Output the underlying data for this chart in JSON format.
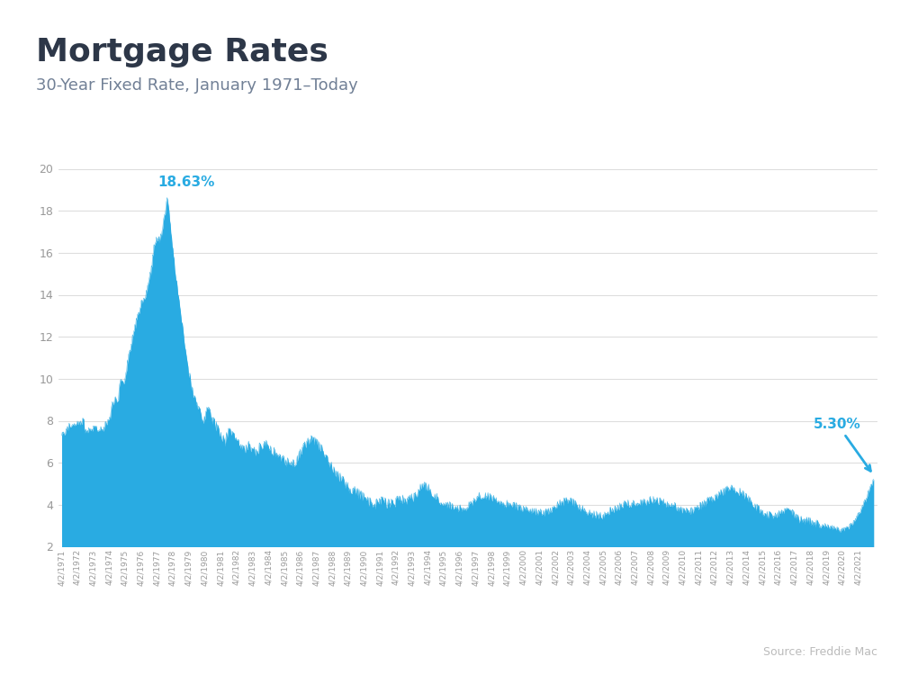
{
  "title": "Mortgage Rates",
  "subtitle": "30-Year Fixed Rate, January 1971–Today",
  "source": "Source: Freddie Mac",
  "fill_color": "#29ABE2",
  "background_color": "#FFFFFF",
  "top_bar_color": "#29ABE2",
  "title_color": "#2D3748",
  "subtitle_color": "#718096",
  "grid_color": "#DDDDDD",
  "annotation_color": "#29ABE2",
  "tick_color": "#999999",
  "ylim": [
    2,
    20
  ],
  "yticks": [
    2,
    4,
    6,
    8,
    10,
    12,
    14,
    16,
    18,
    20
  ],
  "max_label": "18.63%",
  "recent_label": "5.30%",
  "years": [
    1971,
    1972,
    1973,
    1974,
    1975,
    1976,
    1977,
    1978,
    1979,
    1980,
    1981,
    1982,
    1983,
    1984,
    1985,
    1986,
    1987,
    1988,
    1989,
    1990,
    1991,
    1992,
    1993,
    1994,
    1995,
    1996,
    1997,
    1998,
    1999,
    2000,
    2001,
    2002,
    2003,
    2004,
    2005,
    2006,
    2007,
    2008,
    2009,
    2010,
    2011,
    2012,
    2013,
    2014,
    2015,
    2016,
    2017,
    2018,
    2019,
    2020,
    2021
  ],
  "mortgage_rates": [
    7.33,
    7.33,
    7.33,
    7.44,
    7.44,
    7.44,
    7.52,
    7.52,
    7.52,
    7.67,
    7.67,
    7.67,
    7.79,
    7.79,
    7.79,
    7.82,
    7.82,
    7.82,
    7.84,
    7.84,
    7.84,
    7.87,
    7.87,
    7.87,
    7.9,
    7.9,
    7.9,
    7.93,
    7.93,
    7.93,
    7.96,
    7.96,
    7.96,
    7.98,
    7.98,
    7.98,
    7.68,
    7.54,
    7.54,
    7.54,
    7.54,
    7.56,
    7.56,
    7.56,
    7.58,
    7.58,
    7.58,
    7.59,
    7.59,
    7.59,
    7.62,
    7.62,
    7.62,
    7.64,
    7.64,
    7.63,
    7.63,
    7.62,
    7.62,
    7.6,
    7.6,
    7.61,
    7.63,
    7.63,
    7.6,
    7.6,
    7.6,
    7.63,
    7.7,
    7.8,
    7.88,
    7.92,
    7.96,
    7.96,
    7.96,
    8.0,
    8.1,
    8.2,
    8.5,
    8.8,
    8.8,
    8.8,
    8.8,
    9.0,
    9.1,
    9.2,
    9.0,
    8.85,
    8.8,
    8.95,
    9.1,
    9.5,
    9.7,
    9.9,
    9.9,
    9.9,
    9.9,
    9.9,
    9.9,
    9.9,
    10.08,
    10.08,
    10.38,
    10.38,
    10.78,
    10.78,
    11.2,
    11.2,
    11.45,
    11.45,
    11.72,
    11.72,
    11.95,
    11.95,
    12.2,
    12.2,
    12.5,
    12.5,
    12.78,
    12.78,
    12.98,
    12.98,
    13.22,
    13.22,
    13.44,
    13.44,
    13.64,
    13.64,
    13.74,
    13.74,
    13.87,
    13.87,
    13.94,
    13.94,
    14.1,
    14.1,
    14.45,
    14.45,
    14.7,
    14.7,
    14.95,
    14.95,
    15.38,
    15.38,
    15.98,
    15.98,
    16.35,
    16.35,
    16.57,
    16.57,
    16.63,
    16.63,
    16.7,
    16.7,
    16.63,
    16.57,
    16.7,
    16.83,
    16.83,
    16.97,
    17.2,
    17.48,
    17.66,
    17.82,
    17.95,
    18.15,
    18.45,
    18.63,
    18.45,
    18.22,
    17.95,
    17.7,
    17.35,
    17.0,
    16.7,
    16.42,
    16.15,
    15.87,
    15.58,
    15.3,
    15.02,
    14.8,
    14.55,
    14.3,
    14.1,
    13.88,
    13.64,
    13.42,
    13.22,
    13.0,
    12.78,
    12.54,
    12.28,
    12.05,
    11.8,
    11.55,
    11.32,
    11.05,
    10.85,
    10.68,
    10.52,
    10.38,
    10.22,
    10.08,
    9.94,
    9.8,
    9.66,
    9.54,
    9.4,
    9.28,
    9.18,
    9.08,
    8.97,
    8.88,
    8.8,
    8.72,
    8.65,
    8.58,
    8.52,
    8.42,
    8.32,
    8.25,
    8.18,
    8.12,
    8.05,
    8.0,
    7.98,
    8.1,
    8.25,
    8.4,
    8.5,
    8.55,
    8.6,
    8.65,
    8.55,
    8.45,
    8.35,
    8.2,
    8.1,
    8.0,
    7.95,
    7.9,
    7.88,
    7.82,
    7.75,
    7.74,
    7.66,
    7.58,
    7.5,
    7.42,
    7.38,
    7.32,
    7.28,
    7.22,
    7.18,
    7.14,
    7.1,
    7.06,
    7.03,
    6.99,
    7.1,
    7.2,
    7.3,
    7.4,
    7.45,
    7.5,
    7.55,
    7.5,
    7.45,
    7.4,
    7.35,
    7.3,
    7.25,
    7.2,
    7.15,
    7.1,
    7.05,
    7.0,
    6.97,
    6.94,
    6.92,
    6.9,
    6.88,
    6.88,
    6.85,
    6.85,
    6.83,
    6.82,
    6.79,
    6.76,
    6.74,
    6.72,
    6.7,
    6.75,
    6.8,
    6.85,
    6.9,
    6.88,
    6.85,
    6.8,
    6.75,
    6.7,
    6.65,
    6.6,
    6.56,
    6.51,
    6.46,
    6.42,
    6.5,
    6.55,
    6.6,
    6.65,
    6.7,
    6.72,
    6.75,
    6.78,
    6.8,
    6.82,
    6.85,
    6.88,
    6.9,
    6.92,
    6.9,
    6.88,
    6.85,
    6.82,
    6.8,
    6.78,
    6.75,
    6.72,
    6.7,
    6.68,
    6.65,
    6.63,
    6.6,
    6.58,
    6.56,
    6.54,
    6.52,
    6.5,
    6.48,
    6.45,
    6.42,
    6.4,
    6.38,
    6.35,
    6.32,
    6.3,
    6.28,
    6.25,
    6.22,
    6.18,
    6.15,
    6.12,
    6.1,
    6.08,
    6.05,
    6.04,
    6.02,
    6.0,
    5.98,
    5.95,
    5.92,
    5.88,
    5.85,
    5.88,
    5.9,
    5.95,
    6.0,
    6.05,
    6.1,
    6.15,
    6.2,
    6.25,
    6.3,
    6.35,
    6.4,
    6.45,
    6.5,
    6.55,
    6.6,
    6.65,
    6.7,
    6.75,
    6.8,
    6.85,
    6.87,
    6.89,
    6.9,
    6.92,
    6.94,
    6.96,
    6.98,
    7.0,
    7.05,
    7.08,
    7.1,
    7.1,
    7.1,
    7.08,
    7.05,
    7.02,
    7.0,
    6.98,
    6.95,
    6.92,
    6.88,
    6.85,
    6.8,
    6.75,
    6.7,
    6.65,
    6.6,
    6.55,
    6.5,
    6.45,
    6.4,
    6.35,
    6.3,
    6.25,
    6.2,
    6.15,
    6.1,
    6.05,
    6.0,
    5.95,
    5.9,
    5.85,
    5.8,
    5.76,
    5.72,
    5.68,
    5.64,
    5.6,
    5.56,
    5.52,
    5.48,
    5.44,
    5.4,
    5.36,
    5.32,
    5.28,
    5.24,
    5.2,
    5.18,
    5.14,
    5.09,
    5.06,
    5.03,
    4.99,
    4.96,
    4.93,
    4.9,
    4.87,
    4.85,
    4.82,
    4.8,
    4.78,
    4.76,
    4.73,
    4.72,
    4.7,
    4.68,
    4.67,
    4.65,
    4.63,
    4.61,
    4.59,
    4.57,
    4.55,
    4.52,
    4.5,
    4.48,
    4.46,
    4.44,
    4.42,
    4.4,
    4.38,
    4.35,
    4.33,
    4.3,
    4.27,
    4.24,
    4.22,
    4.2,
    4.18,
    4.16,
    4.14,
    4.12,
    4.1,
    4.08,
    4.06,
    4.05,
    4.04,
    4.03,
    4.02,
    4.01,
    4.0,
    4.02,
    4.04,
    4.06,
    4.1,
    4.13,
    4.15,
    4.17,
    4.18,
    4.18,
    4.17,
    4.16,
    4.15,
    4.14,
    4.13,
    4.12,
    4.1,
    4.09,
    4.08,
    4.07,
    4.05,
    4.04,
    4.04,
    4.03,
    4.03,
    4.04,
    4.05,
    4.06,
    4.07,
    4.08,
    4.1,
    4.11,
    4.13,
    4.14,
    4.16,
    4.17,
    4.18,
    4.19,
    4.2,
    4.21,
    4.22,
    4.23,
    4.23,
    4.24,
    4.25,
    4.23,
    4.22,
    4.22,
    4.21,
    4.22,
    4.23,
    4.24,
    4.26,
    4.27,
    4.29,
    4.3,
    4.32,
    4.34,
    4.35,
    4.37,
    4.4,
    4.43,
    4.46,
    4.5,
    4.54,
    4.58,
    4.62,
    4.66,
    4.7,
    4.73,
    4.76,
    4.79,
    4.82,
    4.85,
    4.87,
    4.88,
    4.88,
    4.87,
    4.86,
    4.85,
    4.83,
    4.81,
    4.79,
    4.77,
    4.75,
    4.72,
    4.7,
    4.68,
    4.65,
    4.62,
    4.59,
    4.56,
    4.52,
    4.48,
    4.45,
    4.42,
    4.38,
    4.35,
    4.32,
    4.3,
    4.27,
    4.25,
    4.23,
    4.21,
    4.19,
    4.17,
    4.15,
    4.13,
    4.11,
    4.09,
    4.07,
    4.05,
    4.04,
    4.02,
    4.01,
    4.0,
    3.99,
    3.98,
    3.97,
    3.96,
    3.95,
    3.94,
    3.93,
    3.92,
    3.91,
    3.9,
    3.89,
    3.88,
    3.87,
    3.86,
    3.86,
    3.85,
    3.85,
    3.85,
    3.84,
    3.84,
    3.84,
    3.84,
    3.85,
    3.85,
    3.86,
    3.87,
    3.88,
    3.9,
    3.91,
    3.93,
    3.95,
    3.97,
    3.99,
    4.01,
    4.03,
    4.06,
    4.09,
    4.12,
    4.15,
    4.18,
    4.22,
    4.25,
    4.28,
    4.31,
    4.33,
    4.35,
    4.37,
    4.39,
    4.4,
    4.41,
    4.42,
    4.43,
    4.44,
    4.44,
    4.44,
    4.44,
    4.44,
    4.43,
    4.42,
    4.42,
    4.41,
    4.4,
    4.39,
    4.38,
    4.36,
    4.35,
    4.34,
    4.33,
    4.32,
    4.31,
    4.3,
    4.28,
    4.27,
    4.26,
    4.25,
    4.24,
    4.22,
    4.21,
    4.2,
    4.18,
    4.17,
    4.16,
    4.14,
    4.13,
    4.12,
    4.1,
    4.09,
    4.08,
    4.07,
    4.06,
    4.05,
    4.04,
    4.03,
    4.02,
    4.01,
    4.0,
    3.99,
    3.98,
    3.97,
    3.97,
    3.96,
    3.96,
    3.95,
    3.95,
    3.94,
    3.94,
    3.93,
    3.93,
    3.92,
    3.91,
    3.9,
    3.89,
    3.88,
    3.87,
    3.86,
    3.85,
    3.84,
    3.83,
    3.82,
    3.81,
    3.8,
    3.79,
    3.78,
    3.77,
    3.76,
    3.75,
    3.74,
    3.73,
    3.72,
    3.71,
    3.7,
    3.69,
    3.68,
    3.68,
    3.67,
    3.67,
    3.66,
    3.66,
    3.66,
    3.65,
    3.65,
    3.65,
    3.64,
    3.64,
    3.64,
    3.64,
    3.64,
    3.64,
    3.64,
    3.64,
    3.64,
    3.64,
    3.65,
    3.65,
    3.66,
    3.67,
    3.68,
    3.69,
    3.7,
    3.71,
    3.73,
    3.74,
    3.76,
    3.78,
    3.8,
    3.82,
    3.84,
    3.86,
    3.89,
    3.91,
    3.94,
    3.96,
    3.99,
    4.01,
    4.03,
    4.05,
    4.07,
    4.09,
    4.1,
    4.12,
    4.13,
    4.14,
    4.15,
    4.16,
    4.17,
    4.18,
    4.18,
    4.19,
    4.19,
    4.19,
    4.18,
    4.18,
    4.17,
    4.16,
    4.15,
    4.13,
    4.12,
    4.1,
    4.08,
    4.06,
    4.04,
    4.02,
    4.0,
    3.98,
    3.96,
    3.94,
    3.92,
    3.9,
    3.88,
    3.86,
    3.84,
    3.82,
    3.8,
    3.78,
    3.76,
    3.74,
    3.72,
    3.7,
    3.69,
    3.67,
    3.65,
    3.63,
    3.62,
    3.6,
    3.59,
    3.58,
    3.57,
    3.56,
    3.55,
    3.54,
    3.53,
    3.52,
    3.52,
    3.51,
    3.5,
    3.5,
    3.49,
    3.49,
    3.49,
    3.49,
    3.49,
    3.49,
    3.5,
    3.5,
    3.51,
    3.52,
    3.53,
    3.55,
    3.56,
    3.58,
    3.6,
    3.62,
    3.64,
    3.66,
    3.68,
    3.7,
    3.72,
    3.74,
    3.76,
    3.78,
    3.8,
    3.82,
    3.84,
    3.86,
    3.87,
    3.89,
    3.9,
    3.92,
    3.93,
    3.94,
    3.95,
    3.97,
    3.98,
    3.99,
    4.0,
    4.01,
    4.02,
    4.03,
    4.04,
    4.05,
    4.06,
    4.07,
    4.07,
    4.08,
    4.08,
    4.08,
    4.08,
    4.08,
    4.08,
    4.07,
    4.07,
    4.06,
    4.06,
    4.05,
    4.05,
    4.05,
    4.04,
    4.04,
    4.04,
    4.04,
    4.05,
    4.05,
    4.06,
    4.07,
    4.07,
    4.08,
    4.09,
    4.1,
    4.11,
    4.12,
    4.13,
    4.14,
    4.15,
    4.16,
    4.17,
    4.17,
    4.18,
    4.19,
    4.2,
    4.21,
    4.22,
    4.23,
    4.23,
    4.24,
    4.24,
    4.24,
    4.24,
    4.23,
    4.23,
    4.22,
    4.22,
    4.21,
    4.2,
    4.19,
    4.18,
    4.17,
    4.16,
    4.15,
    4.14,
    4.13,
    4.12,
    4.11,
    4.1,
    4.09,
    4.08,
    4.07,
    4.06,
    4.05,
    4.04,
    4.03,
    4.02,
    4.01,
    4.0,
    3.99,
    3.98,
    3.97,
    3.96,
    3.95,
    3.94,
    3.93,
    3.91,
    3.9,
    3.89,
    3.87,
    3.86,
    3.85,
    3.83,
    3.82,
    3.81,
    3.8,
    3.78,
    3.77,
    3.76,
    3.75,
    3.74,
    3.73,
    3.72,
    3.71,
    3.71,
    3.7,
    3.7,
    3.7,
    3.7,
    3.7,
    3.7,
    3.7,
    3.71,
    3.72,
    3.73,
    3.74,
    3.76,
    3.78,
    3.8,
    3.82,
    3.84,
    3.86,
    3.88,
    3.9,
    3.92,
    3.94,
    3.96,
    3.98,
    4.0,
    4.02,
    4.04,
    4.06,
    4.08,
    4.1,
    4.12,
    4.14,
    4.16,
    4.18,
    4.2,
    4.22,
    4.24,
    4.26,
    4.28,
    4.3,
    4.32,
    4.34,
    4.36,
    4.38,
    4.4,
    4.42,
    4.44,
    4.46,
    4.48,
    4.5,
    4.52,
    4.54,
    4.56,
    4.58,
    4.6,
    4.62,
    4.63,
    4.64,
    4.65,
    4.66,
    4.67,
    4.68,
    4.69,
    4.7,
    4.71,
    4.72,
    4.72,
    4.73,
    4.74,
    4.74,
    4.75,
    4.75,
    4.75,
    4.75,
    4.74,
    4.73,
    4.72,
    4.71,
    4.7,
    4.68,
    4.67,
    4.65,
    4.63,
    4.61,
    4.59,
    4.57,
    4.55,
    4.52,
    4.5,
    4.47,
    4.44,
    4.42,
    4.39,
    4.36,
    4.33,
    4.3,
    4.27,
    4.24,
    4.21,
    4.18,
    4.15,
    4.12,
    4.09,
    4.06,
    4.03,
    4.0,
    3.97,
    3.94,
    3.91,
    3.88,
    3.85,
    3.82,
    3.79,
    3.76,
    3.73,
    3.7,
    3.68,
    3.66,
    3.64,
    3.62,
    3.6,
    3.59,
    3.57,
    3.56,
    3.55,
    3.54,
    3.53,
    3.52,
    3.51,
    3.51,
    3.5,
    3.5,
    3.5,
    3.5,
    3.5,
    3.5,
    3.51,
    3.51,
    3.52,
    3.53,
    3.54,
    3.55,
    3.56,
    3.57,
    3.58,
    3.59,
    3.6,
    3.61,
    3.62,
    3.63,
    3.64,
    3.65,
    3.66,
    3.67,
    3.68,
    3.69,
    3.69,
    3.7,
    3.7,
    3.7,
    3.7,
    3.69,
    3.68,
    3.67,
    3.66,
    3.64,
    3.62,
    3.6,
    3.57,
    3.55,
    3.52,
    3.49,
    3.47,
    3.44,
    3.41,
    3.38,
    3.36,
    3.33,
    3.31,
    3.29,
    3.27,
    3.26,
    3.25,
    3.24,
    3.24,
    3.23,
    3.23,
    3.23,
    3.23,
    3.23,
    3.23,
    3.23,
    3.23,
    3.23,
    3.22,
    3.21,
    3.2,
    3.19,
    3.18,
    3.16,
    3.15,
    3.14,
    3.12,
    3.11,
    3.1,
    3.08,
    3.07,
    3.06,
    3.05,
    3.04,
    3.03,
    3.02,
    3.01,
    3.01,
    3.0,
    3.0,
    3.0,
    3.0,
    3.0,
    3.0,
    3.0,
    2.99,
    2.99,
    2.98,
    2.97,
    2.96,
    2.95,
    2.94,
    2.93,
    2.92,
    2.91,
    2.9,
    2.89,
    2.88,
    2.87,
    2.86,
    2.85,
    2.84,
    2.83,
    2.82,
    2.82,
    2.81,
    2.8,
    2.8,
    2.8,
    2.8,
    2.8,
    2.81,
    2.82,
    2.83,
    2.84,
    2.86,
    2.88,
    2.9,
    2.92,
    2.94,
    2.97,
    3.0,
    3.03,
    3.06,
    3.1,
    3.13,
    3.17,
    3.21,
    3.25,
    3.3,
    3.35,
    3.4,
    3.45,
    3.5,
    3.55,
    3.6,
    3.65,
    3.7,
    3.76,
    3.82,
    3.88,
    3.94,
    4.0,
    4.06,
    4.12,
    4.18,
    4.25,
    4.32,
    4.4,
    4.48,
    4.56,
    4.64,
    4.72,
    4.8,
    4.88,
    4.96,
    5.04,
    5.12,
    5.2,
    5.3
  ]
}
